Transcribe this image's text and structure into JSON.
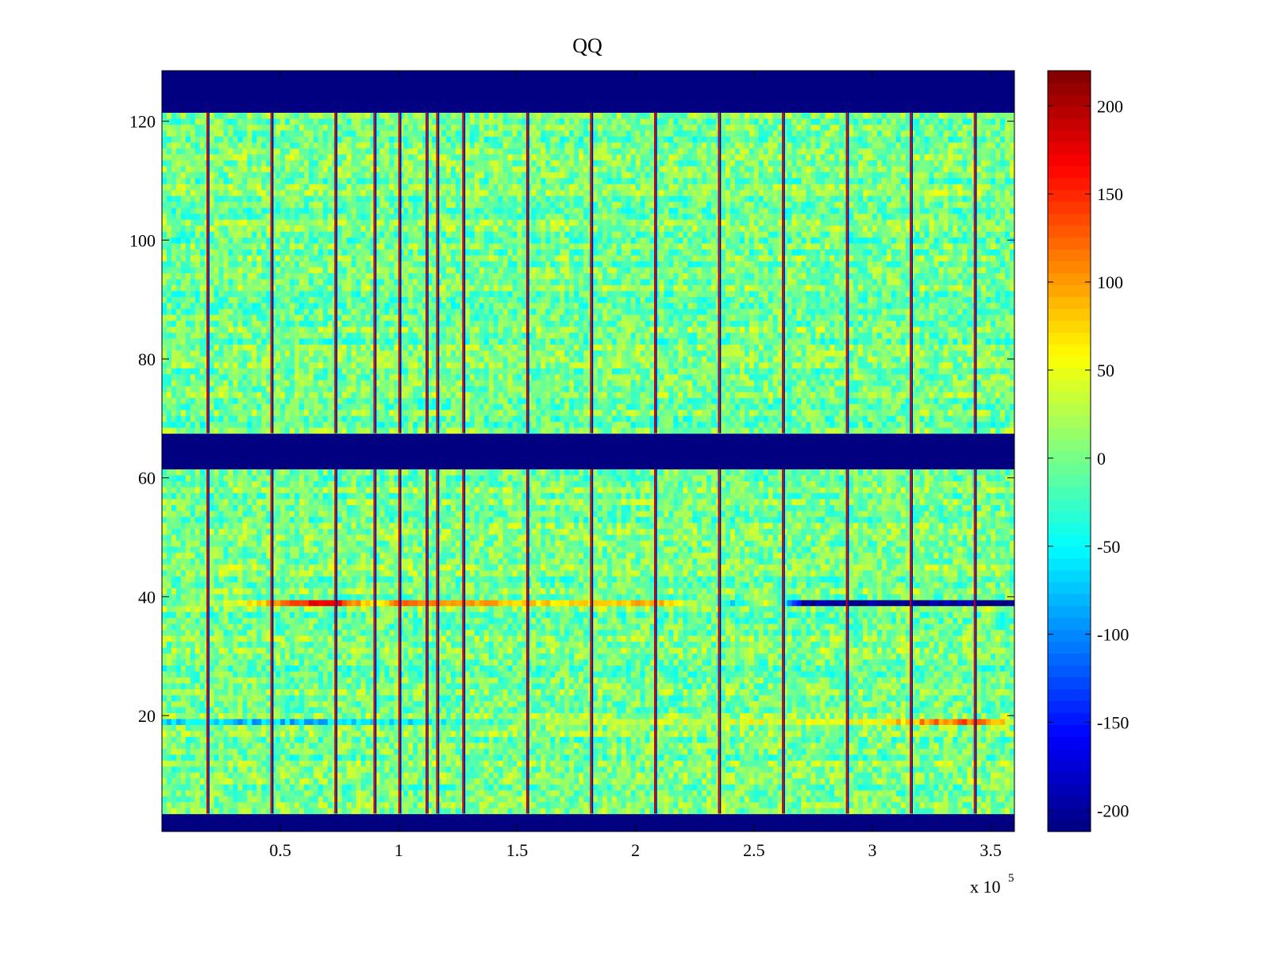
{
  "chart_data": {
    "type": "heatmap",
    "title": "QQ",
    "xlabel": "",
    "ylabel": "",
    "x_multiplier_label": "x 10",
    "x_multiplier_exponent": "5",
    "xlim": [
      0,
      3.6
    ],
    "ylim": [
      0.5,
      128.5
    ],
    "x_ticks": [
      0.5,
      1,
      1.5,
      2,
      2.5,
      3,
      3.5
    ],
    "x_tick_labels": [
      "0.5",
      "1",
      "1.5",
      "2",
      "2.5",
      "3",
      "3.5"
    ],
    "y_ticks": [
      20,
      40,
      60,
      80,
      100,
      120
    ],
    "y_tick_labels": [
      "20",
      "40",
      "60",
      "80",
      "100",
      "120"
    ],
    "colorbar": {
      "colormap": "jet",
      "clim": [
        -212,
        220
      ],
      "ticks": [
        200,
        150,
        100,
        50,
        0,
        -50,
        -100,
        -150,
        -200
      ],
      "tick_labels": [
        "200",
        "150",
        "100",
        "50",
        "0",
        "-50",
        "-100",
        "-150",
        "-200"
      ]
    },
    "blank_row_bands": [
      {
        "from": 0.5,
        "to": 3.5,
        "value": -212
      },
      {
        "from": 61.5,
        "to": 67.5,
        "value": -212
      },
      {
        "from": 121.5,
        "to": 128.5,
        "value": -212
      }
    ],
    "background_value_range": [
      -40,
      40
    ],
    "vertical_streaks_x": [
      0.195,
      0.465,
      0.735,
      0.9,
      1.005,
      1.12,
      1.165,
      1.275,
      1.545,
      1.815,
      2.085,
      2.355,
      2.625,
      2.895,
      3.165,
      3.435
    ],
    "row_39_values": {
      "x": [
        0,
        0.3,
        0.6,
        0.7,
        0.9,
        1.0,
        1.5,
        1.8,
        2.1,
        2.4,
        2.55,
        2.7,
        3.0,
        3.3,
        3.6
      ],
      "values": [
        -20,
        40,
        150,
        190,
        40,
        120,
        80,
        70,
        90,
        -60,
        60,
        -200,
        -210,
        -200,
        -200
      ]
    },
    "row_19_values": {
      "x": [
        0,
        0.6,
        1.2,
        1.8,
        2.4,
        3.0,
        3.4,
        3.6
      ],
      "values": [
        -60,
        -80,
        -40,
        30,
        40,
        60,
        130,
        30
      ]
    }
  }
}
